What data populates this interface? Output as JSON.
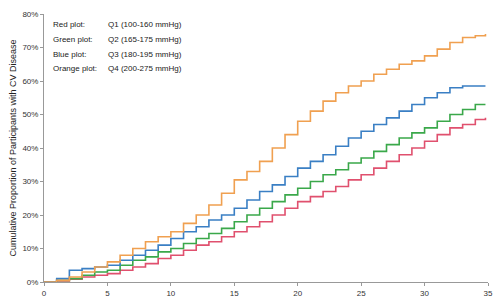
{
  "chart_data": {
    "type": "line",
    "line_style": "step",
    "y_label": "Cumulative Proportion of Participants with CV Disease",
    "annotations": [
      "Red plot:",
      "Green plot:",
      "Blue plot:",
      "Orange plot:"
    ],
    "x": [
      0,
      1,
      2,
      3,
      4,
      5,
      6,
      7,
      8,
      9,
      10,
      11,
      12,
      13,
      14,
      15,
      16,
      17,
      18,
      19,
      20,
      21,
      22,
      23,
      24,
      25,
      26,
      27,
      28,
      29,
      30,
      31,
      32,
      33,
      34,
      34.8
    ],
    "series": [
      {
        "name": "Q1 (100-160 mmHg)",
        "color": "#e0506e",
        "values": [
          0,
          0.3,
          0.8,
          1.5,
          2,
          2.5,
          3.5,
          4.5,
          5.5,
          7,
          8,
          9.5,
          11,
          12,
          13.5,
          15,
          16.5,
          18,
          20,
          22,
          24,
          25.5,
          27,
          28.5,
          30.5,
          32,
          34,
          36,
          38,
          40,
          42,
          44,
          46,
          47,
          48.5,
          49
        ]
      },
      {
        "name": "Q2 (165-175 mmHg)",
        "color": "#3aa84a",
        "values": [
          0,
          0.5,
          1,
          2,
          3,
          3.5,
          5,
          6.5,
          7.5,
          9,
          10,
          11.5,
          13,
          14.5,
          16,
          18,
          20,
          22,
          24,
          26,
          28,
          30,
          32,
          33.5,
          35.5,
          37,
          39,
          41,
          43,
          44.5,
          46,
          48,
          50,
          51.5,
          53,
          53
        ]
      },
      {
        "name": "Q3 (180-195 mmHg)",
        "color": "#3a7fc4",
        "values": [
          0,
          1,
          3.5,
          4,
          4.5,
          5,
          6.5,
          8,
          9.5,
          11,
          13,
          15,
          16.5,
          18.5,
          20,
          22,
          24.5,
          27,
          29,
          31.5,
          34,
          36,
          38,
          40.5,
          43,
          45,
          47,
          49,
          51,
          53,
          55,
          56.5,
          58,
          58.5,
          58.5,
          58.5
        ]
      },
      {
        "name": "Q4 (200-275 mmHg)",
        "color": "#f0a050",
        "values": [
          0,
          0.5,
          1.5,
          3,
          4.5,
          6,
          8,
          10,
          12,
          13.5,
          15,
          17.5,
          20,
          23,
          26.5,
          30.5,
          33,
          36,
          40,
          44,
          48,
          51,
          54,
          56.5,
          58.5,
          60,
          62,
          63.5,
          65,
          66,
          67.5,
          69.5,
          71.5,
          73,
          73.5,
          74
        ]
      }
    ],
    "xlim": [
      0,
      35
    ],
    "xticks": [
      0,
      5,
      10,
      15,
      20,
      25,
      30,
      35
    ],
    "ylim": [
      0,
      80
    ],
    "yticks": [
      {
        "value": 0,
        "label": "0%"
      },
      {
        "value": 10,
        "label": "10%"
      },
      {
        "value": 20,
        "label": "20%"
      },
      {
        "value": 30,
        "label": "30%"
      },
      {
        "value": 40,
        "label": "40%"
      },
      {
        "value": 50,
        "label": "50%"
      },
      {
        "value": 60,
        "label": "60%"
      },
      {
        "value": 70,
        "label": "70%"
      },
      {
        "value": 80,
        "label": "80%"
      }
    ],
    "grid": false,
    "legend": "none"
  }
}
